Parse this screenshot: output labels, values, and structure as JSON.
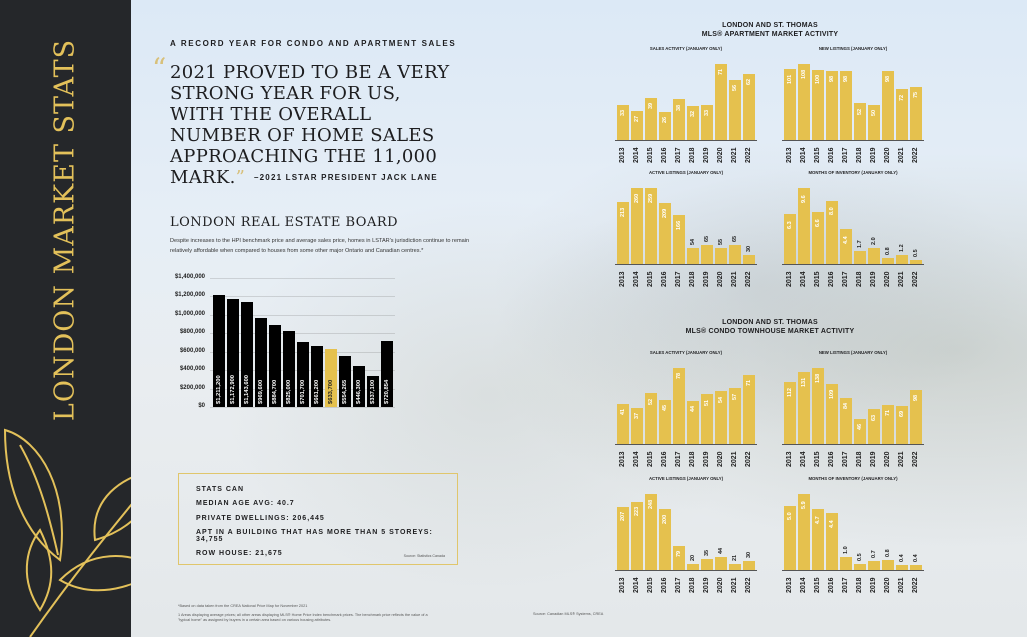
{
  "sidebar": {
    "title": "LONDON MARKET STATS"
  },
  "kicker": "A RECORD YEAR FOR CONDO AND APARTMENT SALES",
  "quote": {
    "text": "2021 PROVED TO BE A VERY STRONG YEAR FOR US, WITH THE OVERALL NUMBER OF HOME SALES APPROACHING THE 11,000 MARK.",
    "open": "“",
    "close": "”",
    "attribution": "–2021 LSTAR PRESIDENT JACK LANE"
  },
  "board": {
    "title": "LONDON REAL ESTATE BOARD",
    "text": "Despite increases to the HPI benchmark price and average sales price, homes in LSTAR's jurisdiction continue to remain relatively affordable when compared to houses from some other major Ontario and Canadian centres.*"
  },
  "stats": {
    "title": "STATS CAN",
    "median_age": "MEDIAN AGE AVG: 40.7",
    "dwellings": "PRIVATE DWELLINGS: 206,445",
    "apt": "APT IN A BUILDING THAT HAS MORE THAN 5 STOREYS: 34,755",
    "row": "ROW HOUSE: 21,675",
    "source": "Source: Statistics Canada"
  },
  "footnotes": {
    "note1": "*Based on data taken from the CREA National Price Map for November 2021",
    "note2": "1 Areas displaying average prices; all other areas displaying MLS® Home Price Index benchmark prices. The benchmark price reflects the value of a \"typical home\" as assigned by buyers in a certain area based on various housing attributes.",
    "source": "Source: Canadian MLS® Systems, CREA"
  },
  "colors": {
    "gold": "#e5c14e",
    "dark": "#25272a",
    "highlight": "#e5c14e",
    "bar": "#000000"
  },
  "sections": {
    "apartment": {
      "line1": "LONDON AND ST. THOMAS",
      "line2": "MLS® APARTMENT MARKET ACTIVITY"
    },
    "townhouse": {
      "line1": "LONDON AND ST. THOMAS",
      "line2": "MLS® CONDO TOWNHOUSE MARKET ACTIVITY"
    }
  },
  "chart_data": [
    {
      "id": "prices",
      "type": "bar",
      "title": "",
      "xlabel": "",
      "ylabel": "",
      "ylim": [
        0,
        1400000
      ],
      "yticks": [
        "$0",
        "$200,000",
        "$400,000",
        "$600,000",
        "$800,000",
        "$1,000,000",
        "$1,200,000",
        "$1,400,000"
      ],
      "categories": [
        "GREATER VANCOUVER",
        "GREATER TORONTO",
        "FRASER VALLEY",
        "HAMILTON-BURLINGTON",
        "VICTORIA",
        "KITCHENER-WATERLOO",
        "NIAGARA REGION",
        "OTTAWA",
        "LONDON ST. THOMAS",
        "WINDSOR-ESSEX",
        "CALGARY",
        "EDMONTON",
        "CANADA"
      ],
      "values": [
        1211200,
        1172900,
        1143600,
        969600,
        884700,
        825000,
        701700,
        661200,
        633700,
        554265,
        446300,
        337100,
        720854
      ],
      "labels": [
        "$1,211,200",
        "$1,172,900",
        "$1,143,600",
        "$969,600",
        "$884,700",
        "$825,000",
        "$701,700",
        "$661,200",
        "$633,700",
        "$554,265",
        "$446,300",
        "$337,100",
        "$720,854"
      ],
      "highlight": "LONDON ST. THOMAS",
      "grid": true
    },
    {
      "id": "apt-sales",
      "type": "bar",
      "title": "SALES ACTIVITY (JANUARY ONLY)",
      "categories": [
        "2013",
        "2014",
        "2015",
        "2016",
        "2017",
        "2018",
        "2019",
        "2020",
        "2021",
        "2022"
      ],
      "values": [
        33,
        27,
        39,
        26,
        38,
        32,
        33,
        71,
        56,
        62
      ],
      "labels": [
        "33",
        "27",
        "39",
        "26",
        "38",
        "32",
        "33",
        "71",
        "56",
        "62"
      ]
    },
    {
      "id": "apt-new",
      "type": "bar",
      "title": "NEW LISTINGS (JANUARY ONLY)",
      "categories": [
        "2013",
        "2014",
        "2015",
        "2016",
        "2017",
        "2018",
        "2019",
        "2020",
        "2021",
        "2022"
      ],
      "values": [
        101,
        108,
        100,
        98,
        98,
        52,
        50,
        98,
        72,
        75
      ],
      "labels": [
        "101",
        "108",
        "100",
        "98",
        "98",
        "52",
        "50",
        "98",
        "72",
        "75"
      ]
    },
    {
      "id": "apt-active",
      "type": "bar",
      "title": "ACTIVE LISTINGS (JANUARY ONLY)",
      "categories": [
        "2013",
        "2014",
        "2015",
        "2016",
        "2017",
        "2018",
        "2019",
        "2020",
        "2021",
        "2022"
      ],
      "values": [
        213,
        260,
        259,
        209,
        166,
        54,
        65,
        55,
        65,
        30
      ],
      "labels": [
        "213",
        "260",
        "259",
        "209",
        "166",
        "54",
        "65",
        "55",
        "65",
        "30"
      ]
    },
    {
      "id": "apt-moi",
      "type": "bar",
      "title": "MONTHS OF INVENTORY (JANUARY ONLY)",
      "categories": [
        "2013",
        "2014",
        "2015",
        "2016",
        "2017",
        "2018",
        "2019",
        "2020",
        "2021",
        "2022"
      ],
      "values": [
        6.3,
        9.6,
        6.6,
        8.0,
        4.4,
        1.7,
        2.0,
        0.8,
        1.2,
        0.5
      ],
      "labels": [
        "6.3",
        "9.6",
        "6.6",
        "8.0",
        "4.4",
        "1.7",
        "2.0",
        "0.8",
        "1.2",
        "0.5"
      ]
    },
    {
      "id": "th-sales",
      "type": "bar",
      "title": "SALES ACTIVITY (JANUARY ONLY)",
      "categories": [
        "2013",
        "2014",
        "2015",
        "2016",
        "2017",
        "2018",
        "2019",
        "2020",
        "2021",
        "2022"
      ],
      "values": [
        41,
        37,
        52,
        45,
        78,
        44,
        51,
        54,
        57,
        71
      ],
      "labels": [
        "41",
        "37",
        "52",
        "45",
        "78",
        "44",
        "51",
        "54",
        "57",
        "71"
      ]
    },
    {
      "id": "th-new",
      "type": "bar",
      "title": "NEW LISTINGS (JANUARY ONLY)",
      "categories": [
        "2013",
        "2014",
        "2015",
        "2016",
        "2017",
        "2018",
        "2019",
        "2020",
        "2021",
        "2022"
      ],
      "values": [
        112,
        131,
        138,
        109,
        84,
        46,
        63,
        71,
        69,
        98
      ],
      "labels": [
        "112",
        "131",
        "138",
        "109",
        "84",
        "46",
        "63",
        "71",
        "69",
        "98"
      ]
    },
    {
      "id": "th-active",
      "type": "bar",
      "title": "ACTIVE LISTINGS (JANUARY ONLY)",
      "categories": [
        "2013",
        "2014",
        "2015",
        "2016",
        "2017",
        "2018",
        "2019",
        "2020",
        "2021",
        "2022"
      ],
      "values": [
        207,
        223,
        248,
        200,
        79,
        20,
        35,
        44,
        21,
        30
      ],
      "labels": [
        "207",
        "223",
        "248",
        "200",
        "79",
        "20",
        "35",
        "44",
        "21",
        "30"
      ]
    },
    {
      "id": "th-moi",
      "type": "bar",
      "title": "MONTHS OF INVENTORY (JANUARY ONLY)",
      "categories": [
        "2013",
        "2014",
        "2015",
        "2016",
        "2017",
        "2018",
        "2019",
        "2020",
        "2021",
        "2022"
      ],
      "values": [
        5.0,
        5.9,
        4.7,
        4.4,
        1.0,
        0.5,
        0.7,
        0.8,
        0.4,
        0.4
      ],
      "labels": [
        "5.0",
        "5.9",
        "4.7",
        "4.4",
        "1.0",
        "0.5",
        "0.7",
        "0.8",
        "0.4",
        "0.4"
      ]
    }
  ]
}
